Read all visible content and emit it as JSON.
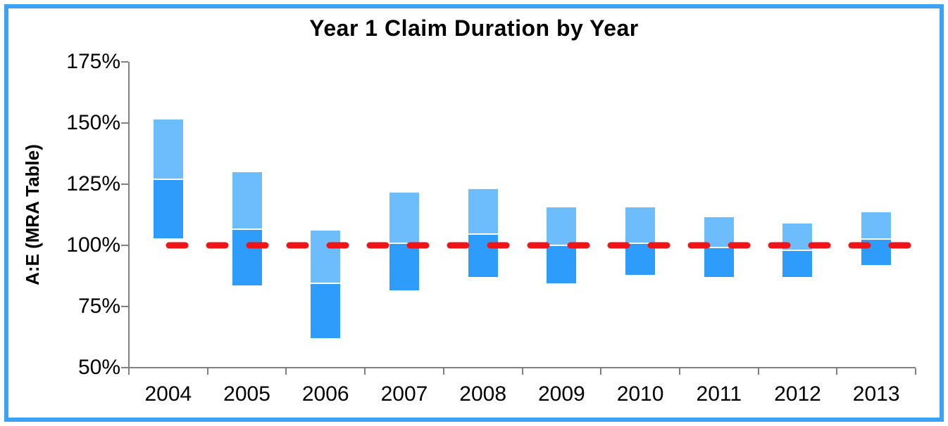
{
  "title": "Year 1 Claim Duration by Year",
  "y_axis": {
    "label": "A:E (MRA Table)",
    "ticks": [
      "175%",
      "150%",
      "125%",
      "100%",
      "75%",
      "50%"
    ]
  },
  "x_axis": {
    "categories": [
      "2004",
      "2005",
      "2006",
      "2007",
      "2008",
      "2009",
      "2010",
      "2011",
      "2012",
      "2013"
    ]
  },
  "colors": {
    "bar_lower_dark_blue": "#2E9CFA",
    "bar_upper_light_blue": "#6DBDFC",
    "segment_divider": "#FFFFFF",
    "reference_line_red": "#EE1418",
    "axis_gray": "#808080",
    "frame_border_blue": "#3BA2F7",
    "text": "#000000",
    "background": "#FFFFFF"
  },
  "chart_data": {
    "type": "bar",
    "subtype": "floating stacked range bars (two segments per category)",
    "title": "Year 1 Claim Duration by Year",
    "xlabel": "",
    "ylabel": "A:E (MRA Table)",
    "y_unit": "%",
    "ylim": [
      50,
      175
    ],
    "y_tick_step": 25,
    "grid": "off",
    "legend": "none",
    "categories": [
      "2004",
      "2005",
      "2006",
      "2007",
      "2008",
      "2009",
      "2010",
      "2011",
      "2012",
      "2013"
    ],
    "series": [
      {
        "name": "lower-segment-dark-blue",
        "color": "#2E9CFA",
        "from": [
          103,
          83.5,
          62,
          81.5,
          87,
          84.5,
          88,
          87,
          87,
          92
        ],
        "to": [
          127,
          106.5,
          84.5,
          101,
          104.5,
          100,
          101,
          99,
          98,
          102.5
        ]
      },
      {
        "name": "upper-segment-light-blue",
        "color": "#6DBDFC",
        "from": [
          127,
          106.5,
          84.5,
          101,
          104.5,
          100,
          101,
          99,
          98,
          102.5
        ],
        "to": [
          151.5,
          130,
          106,
          121.5,
          123,
          115.5,
          115.5,
          111.5,
          109,
          113.5
        ]
      }
    ],
    "reference_line": {
      "value": 100,
      "style": "dashed",
      "color": "#EE1418"
    }
  }
}
